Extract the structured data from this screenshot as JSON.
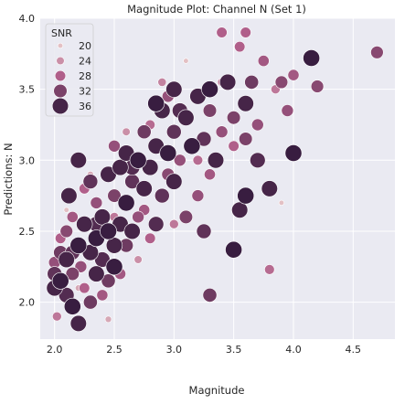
{
  "chart_data": {
    "type": "scatter",
    "title": "Magnitude Plot: Channel N (Set 1)",
    "xlabel": "Magnitude",
    "ylabel": "Predictions: N",
    "xlim": [
      1.88,
      4.85
    ],
    "ylim": [
      1.74,
      4.0
    ],
    "xticks": [
      "2.0",
      "2.5",
      "3.0",
      "3.5",
      "4.0",
      "4.5"
    ],
    "yticks": [
      "2.0",
      "2.5",
      "3.0",
      "3.5",
      "4.0"
    ],
    "grid": true,
    "background": "#eaeaf2",
    "legend": {
      "title": "SNR",
      "placement": "top-left",
      "entries": [
        {
          "label": "20",
          "value": 20
        },
        {
          "label": "24",
          "value": 24
        },
        {
          "label": "28",
          "value": 28
        },
        {
          "label": "32",
          "value": 32
        },
        {
          "label": "36",
          "value": 36
        }
      ]
    },
    "color_range": {
      "min_snr": 18,
      "max_snr": 38,
      "low": "#f0d8d3",
      "mid": "#b05f8a",
      "high": "#2b1638"
    },
    "points": [
      {
        "x": 2.0,
        "y": 2.2,
        "snr": 34
      },
      {
        "x": 2.0,
        "y": 2.28,
        "snr": 30
      },
      {
        "x": 2.0,
        "y": 2.1,
        "snr": 36
      },
      {
        "x": 2.02,
        "y": 1.9,
        "snr": 26
      },
      {
        "x": 2.05,
        "y": 2.35,
        "snr": 33
      },
      {
        "x": 2.05,
        "y": 2.15,
        "snr": 37
      },
      {
        "x": 2.1,
        "y": 2.5,
        "snr": 31
      },
      {
        "x": 2.1,
        "y": 2.05,
        "snr": 35
      },
      {
        "x": 2.1,
        "y": 2.3,
        "snr": 36
      },
      {
        "x": 2.12,
        "y": 2.75,
        "snr": 36
      },
      {
        "x": 2.15,
        "y": 2.2,
        "snr": 32
      },
      {
        "x": 2.15,
        "y": 1.97,
        "snr": 37
      },
      {
        "x": 2.15,
        "y": 2.6,
        "snr": 29
      },
      {
        "x": 2.2,
        "y": 2.4,
        "snr": 37
      },
      {
        "x": 2.2,
        "y": 1.85,
        "snr": 36
      },
      {
        "x": 2.2,
        "y": 3.0,
        "snr": 36
      },
      {
        "x": 2.22,
        "y": 2.25,
        "snr": 30
      },
      {
        "x": 2.25,
        "y": 2.55,
        "snr": 36
      },
      {
        "x": 2.25,
        "y": 2.1,
        "snr": 28
      },
      {
        "x": 2.3,
        "y": 2.35,
        "snr": 36
      },
      {
        "x": 2.3,
        "y": 2.85,
        "snr": 34
      },
      {
        "x": 2.3,
        "y": 2.0,
        "snr": 33
      },
      {
        "x": 2.35,
        "y": 2.45,
        "snr": 37
      },
      {
        "x": 2.35,
        "y": 2.2,
        "snr": 36
      },
      {
        "x": 2.35,
        "y": 2.7,
        "snr": 30
      },
      {
        "x": 2.4,
        "y": 2.6,
        "snr": 36
      },
      {
        "x": 2.4,
        "y": 2.3,
        "snr": 35
      },
      {
        "x": 2.4,
        "y": 2.05,
        "snr": 29
      },
      {
        "x": 2.45,
        "y": 2.9,
        "snr": 36
      },
      {
        "x": 2.45,
        "y": 2.5,
        "snr": 37
      },
      {
        "x": 2.45,
        "y": 2.15,
        "snr": 33
      },
      {
        "x": 2.5,
        "y": 2.4,
        "snr": 36
      },
      {
        "x": 2.5,
        "y": 2.75,
        "snr": 32
      },
      {
        "x": 2.5,
        "y": 2.25,
        "snr": 37
      },
      {
        "x": 2.5,
        "y": 3.1,
        "snr": 30
      },
      {
        "x": 2.55,
        "y": 2.55,
        "snr": 36
      },
      {
        "x": 2.55,
        "y": 2.95,
        "snr": 36
      },
      {
        "x": 2.6,
        "y": 2.7,
        "snr": 37
      },
      {
        "x": 2.6,
        "y": 2.4,
        "snr": 33
      },
      {
        "x": 2.6,
        "y": 3.05,
        "snr": 36
      },
      {
        "x": 2.65,
        "y": 2.85,
        "snr": 34
      },
      {
        "x": 2.65,
        "y": 2.5,
        "snr": 36
      },
      {
        "x": 2.7,
        "y": 3.0,
        "snr": 37
      },
      {
        "x": 2.7,
        "y": 2.6,
        "snr": 30
      },
      {
        "x": 2.75,
        "y": 2.8,
        "snr": 36
      },
      {
        "x": 2.75,
        "y": 3.2,
        "snr": 33
      },
      {
        "x": 2.8,
        "y": 2.95,
        "snr": 36
      },
      {
        "x": 2.8,
        "y": 2.45,
        "snr": 28
      },
      {
        "x": 2.85,
        "y": 3.1,
        "snr": 36
      },
      {
        "x": 2.85,
        "y": 3.4,
        "snr": 37
      },
      {
        "x": 2.9,
        "y": 2.75,
        "snr": 34
      },
      {
        "x": 2.9,
        "y": 3.35,
        "snr": 36
      },
      {
        "x": 2.95,
        "y": 3.05,
        "snr": 37
      },
      {
        "x": 2.95,
        "y": 2.9,
        "snr": 31
      },
      {
        "x": 3.0,
        "y": 3.5,
        "snr": 36
      },
      {
        "x": 3.0,
        "y": 3.2,
        "snr": 34
      },
      {
        "x": 3.0,
        "y": 2.85,
        "snr": 36
      },
      {
        "x": 3.05,
        "y": 3.0,
        "snr": 30
      },
      {
        "x": 3.1,
        "y": 3.3,
        "snr": 36
      },
      {
        "x": 3.1,
        "y": 2.6,
        "snr": 32
      },
      {
        "x": 3.15,
        "y": 3.1,
        "snr": 37
      },
      {
        "x": 3.2,
        "y": 3.45,
        "snr": 36
      },
      {
        "x": 3.2,
        "y": 2.75,
        "snr": 30
      },
      {
        "x": 3.25,
        "y": 3.15,
        "snr": 34
      },
      {
        "x": 3.3,
        "y": 3.5,
        "snr": 37
      },
      {
        "x": 3.3,
        "y": 2.05,
        "snr": 33
      },
      {
        "x": 3.3,
        "y": 2.9,
        "snr": 29
      },
      {
        "x": 3.35,
        "y": 3.0,
        "snr": 36
      },
      {
        "x": 3.4,
        "y": 3.2,
        "snr": 30
      },
      {
        "x": 3.45,
        "y": 3.55,
        "snr": 36
      },
      {
        "x": 3.5,
        "y": 2.37,
        "snr": 37
      },
      {
        "x": 3.5,
        "y": 3.3,
        "snr": 32
      },
      {
        "x": 3.5,
        "y": 3.1,
        "snr": 28
      },
      {
        "x": 3.55,
        "y": 2.65,
        "snr": 36
      },
      {
        "x": 3.6,
        "y": 2.75,
        "snr": 37
      },
      {
        "x": 3.6,
        "y": 3.4,
        "snr": 36
      },
      {
        "x": 3.6,
        "y": 3.9,
        "snr": 28
      },
      {
        "x": 3.65,
        "y": 3.55,
        "snr": 33
      },
      {
        "x": 3.7,
        "y": 3.25,
        "snr": 30
      },
      {
        "x": 3.75,
        "y": 3.7,
        "snr": 29
      },
      {
        "x": 3.8,
        "y": 2.8,
        "snr": 36
      },
      {
        "x": 3.8,
        "y": 2.23,
        "snr": 27
      },
      {
        "x": 3.85,
        "y": 3.5,
        "snr": 26
      },
      {
        "x": 3.9,
        "y": 3.55,
        "snr": 31
      },
      {
        "x": 3.95,
        "y": 3.35,
        "snr": 30
      },
      {
        "x": 4.0,
        "y": 3.05,
        "snr": 37
      },
      {
        "x": 4.0,
        "y": 3.6,
        "snr": 29
      },
      {
        "x": 4.15,
        "y": 3.72,
        "snr": 37
      },
      {
        "x": 4.2,
        "y": 3.52,
        "snr": 31
      },
      {
        "x": 4.7,
        "y": 3.76,
        "snr": 31
      },
      {
        "x": 3.4,
        "y": 3.9,
        "snr": 28
      },
      {
        "x": 3.9,
        "y": 2.7,
        "snr": 20
      },
      {
        "x": 3.1,
        "y": 3.7,
        "snr": 20
      },
      {
        "x": 2.1,
        "y": 2.65,
        "snr": 20
      },
      {
        "x": 2.3,
        "y": 2.9,
        "snr": 22
      },
      {
        "x": 2.45,
        "y": 1.88,
        "snr": 22
      },
      {
        "x": 2.6,
        "y": 3.2,
        "snr": 24
      },
      {
        "x": 2.7,
        "y": 2.3,
        "snr": 24
      },
      {
        "x": 2.9,
        "y": 3.55,
        "snr": 25
      },
      {
        "x": 2.2,
        "y": 2.1,
        "snr": 22
      },
      {
        "x": 2.5,
        "y": 2.6,
        "snr": 26
      },
      {
        "x": 2.8,
        "y": 3.25,
        "snr": 27
      },
      {
        "x": 3.0,
        "y": 2.55,
        "snr": 26
      },
      {
        "x": 3.2,
        "y": 3.0,
        "snr": 27
      },
      {
        "x": 3.4,
        "y": 3.55,
        "snr": 25
      },
      {
        "x": 2.05,
        "y": 2.45,
        "snr": 28
      },
      {
        "x": 2.25,
        "y": 2.8,
        "snr": 28
      },
      {
        "x": 2.55,
        "y": 2.2,
        "snr": 29
      },
      {
        "x": 2.75,
        "y": 2.65,
        "snr": 29
      },
      {
        "x": 2.95,
        "y": 3.45,
        "snr": 30
      },
      {
        "x": 3.3,
        "y": 3.35,
        "snr": 32
      },
      {
        "x": 3.6,
        "y": 3.15,
        "snr": 32
      },
      {
        "x": 3.55,
        "y": 3.8,
        "snr": 28
      },
      {
        "x": 3.7,
        "y": 3.0,
        "snr": 35
      },
      {
        "x": 2.15,
        "y": 2.35,
        "snr": 34
      },
      {
        "x": 2.35,
        "y": 2.55,
        "snr": 35
      },
      {
        "x": 2.65,
        "y": 2.95,
        "snr": 35
      },
      {
        "x": 2.85,
        "y": 2.55,
        "snr": 35
      },
      {
        "x": 3.05,
        "y": 3.35,
        "snr": 35
      },
      {
        "x": 3.25,
        "y": 2.5,
        "snr": 34
      }
    ]
  }
}
